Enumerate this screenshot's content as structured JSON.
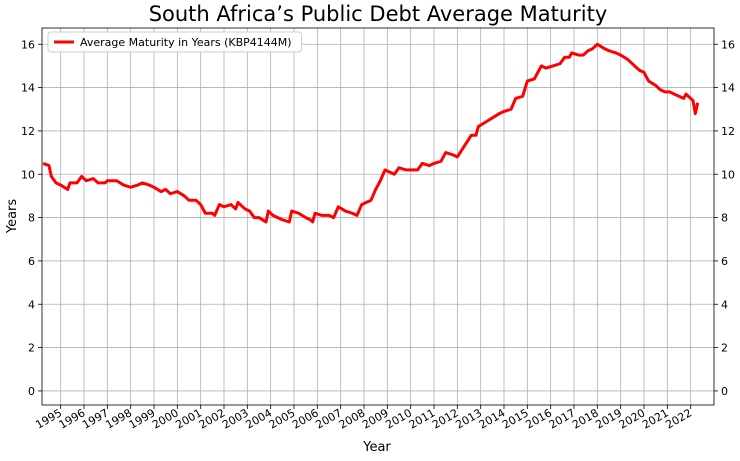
{
  "chart_data": {
    "type": "line",
    "title": "South Africa’s Public Debt Average Maturity",
    "x_label": "Year",
    "y_label": "Years",
    "series": [
      {
        "name": "Average Maturity in Years (KBP4144M)",
        "color": "#ff0000",
        "x": [
          1994.25,
          1994.5,
          1994.6,
          1994.8,
          1995.0,
          1995.3,
          1995.4,
          1995.7,
          1995.9,
          1996.1,
          1996.4,
          1996.6,
          1996.9,
          1997.0,
          1997.4,
          1997.7,
          1998.0,
          1998.3,
          1998.5,
          1998.8,
          1999.0,
          1999.3,
          1999.5,
          1999.7,
          2000.0,
          2000.3,
          2000.5,
          2000.8,
          2001.0,
          2001.2,
          2001.5,
          2001.6,
          2001.8,
          2002.0,
          2002.3,
          2002.5,
          2002.6,
          2002.9,
          2003.1,
          2003.3,
          2003.5,
          2003.8,
          2003.9,
          2004.1,
          2004.3,
          2004.5,
          2004.8,
          2004.9,
          2005.2,
          2005.5,
          2005.7,
          2005.8,
          2005.9,
          2006.2,
          2006.5,
          2006.7,
          2006.9,
          2007.2,
          2007.5,
          2007.7,
          2007.9,
          2008.1,
          2008.3,
          2008.5,
          2008.7,
          2008.9,
          2009.1,
          2009.3,
          2009.5,
          2009.8,
          2010.0,
          2010.3,
          2010.5,
          2010.8,
          2011.0,
          2011.3,
          2011.5,
          2011.8,
          2012.0,
          2012.3,
          2012.6,
          2012.8,
          2012.9,
          2013.2,
          2013.5,
          2013.8,
          2014.0,
          2014.3,
          2014.5,
          2014.8,
          2015.0,
          2015.3,
          2015.6,
          2015.8,
          2016.1,
          2016.4,
          2016.6,
          2016.8,
          2016.9,
          2017.2,
          2017.4,
          2017.6,
          2017.8,
          2018.0,
          2018.3,
          2018.5,
          2018.8,
          2019.0,
          2019.3,
          2019.6,
          2019.8,
          2020.0,
          2020.2,
          2020.5,
          2020.7,
          2020.9,
          2021.1,
          2021.3,
          2021.5,
          2021.7,
          2021.8,
          2022.0,
          2022.1,
          2022.2,
          2022.3
        ],
        "values": [
          10.5,
          10.4,
          9.9,
          9.6,
          9.5,
          9.3,
          9.6,
          9.6,
          9.9,
          9.7,
          9.8,
          9.6,
          9.6,
          9.7,
          9.7,
          9.5,
          9.4,
          9.5,
          9.6,
          9.5,
          9.4,
          9.2,
          9.3,
          9.1,
          9.2,
          9.0,
          8.8,
          8.8,
          8.6,
          8.2,
          8.2,
          8.1,
          8.6,
          8.5,
          8.6,
          8.4,
          8.7,
          8.4,
          8.3,
          8.0,
          8.0,
          7.8,
          8.3,
          8.1,
          8.0,
          7.9,
          7.8,
          8.3,
          8.2,
          8.0,
          7.9,
          7.8,
          8.2,
          8.1,
          8.1,
          8.0,
          8.5,
          8.3,
          8.2,
          8.1,
          8.6,
          8.7,
          8.8,
          9.3,
          9.7,
          10.2,
          10.1,
          10.0,
          10.3,
          10.2,
          10.2,
          10.2,
          10.5,
          10.4,
          10.5,
          10.6,
          11.0,
          10.9,
          10.8,
          11.3,
          11.8,
          11.8,
          12.2,
          12.4,
          12.6,
          12.8,
          12.9,
          13.0,
          13.5,
          13.6,
          14.3,
          14.4,
          15.0,
          14.9,
          15.0,
          15.1,
          15.4,
          15.4,
          15.6,
          15.5,
          15.5,
          15.7,
          15.8,
          16.0,
          15.8,
          15.7,
          15.6,
          15.5,
          15.3,
          15.0,
          14.8,
          14.7,
          14.3,
          14.1,
          13.9,
          13.8,
          13.8,
          13.7,
          13.6,
          13.5,
          13.7,
          13.5,
          13.4,
          12.8,
          13.3
        ]
      }
    ],
    "xlim": [
      1994.2,
      2023.0
    ],
    "xticks": [
      1995,
      1996,
      1997,
      1998,
      1999,
      2000,
      2001,
      2002,
      2003,
      2004,
      2005,
      2006,
      2007,
      2008,
      2009,
      2010,
      2011,
      2012,
      2013,
      2014,
      2015,
      2016,
      2017,
      2018,
      2019,
      2020,
      2021,
      2022
    ],
    "ylim": [
      -0.65,
      16.75
    ],
    "yticks": [
      0,
      2,
      4,
      6,
      8,
      10,
      12,
      14,
      16
    ],
    "grid": true,
    "legend": "upper left"
  }
}
